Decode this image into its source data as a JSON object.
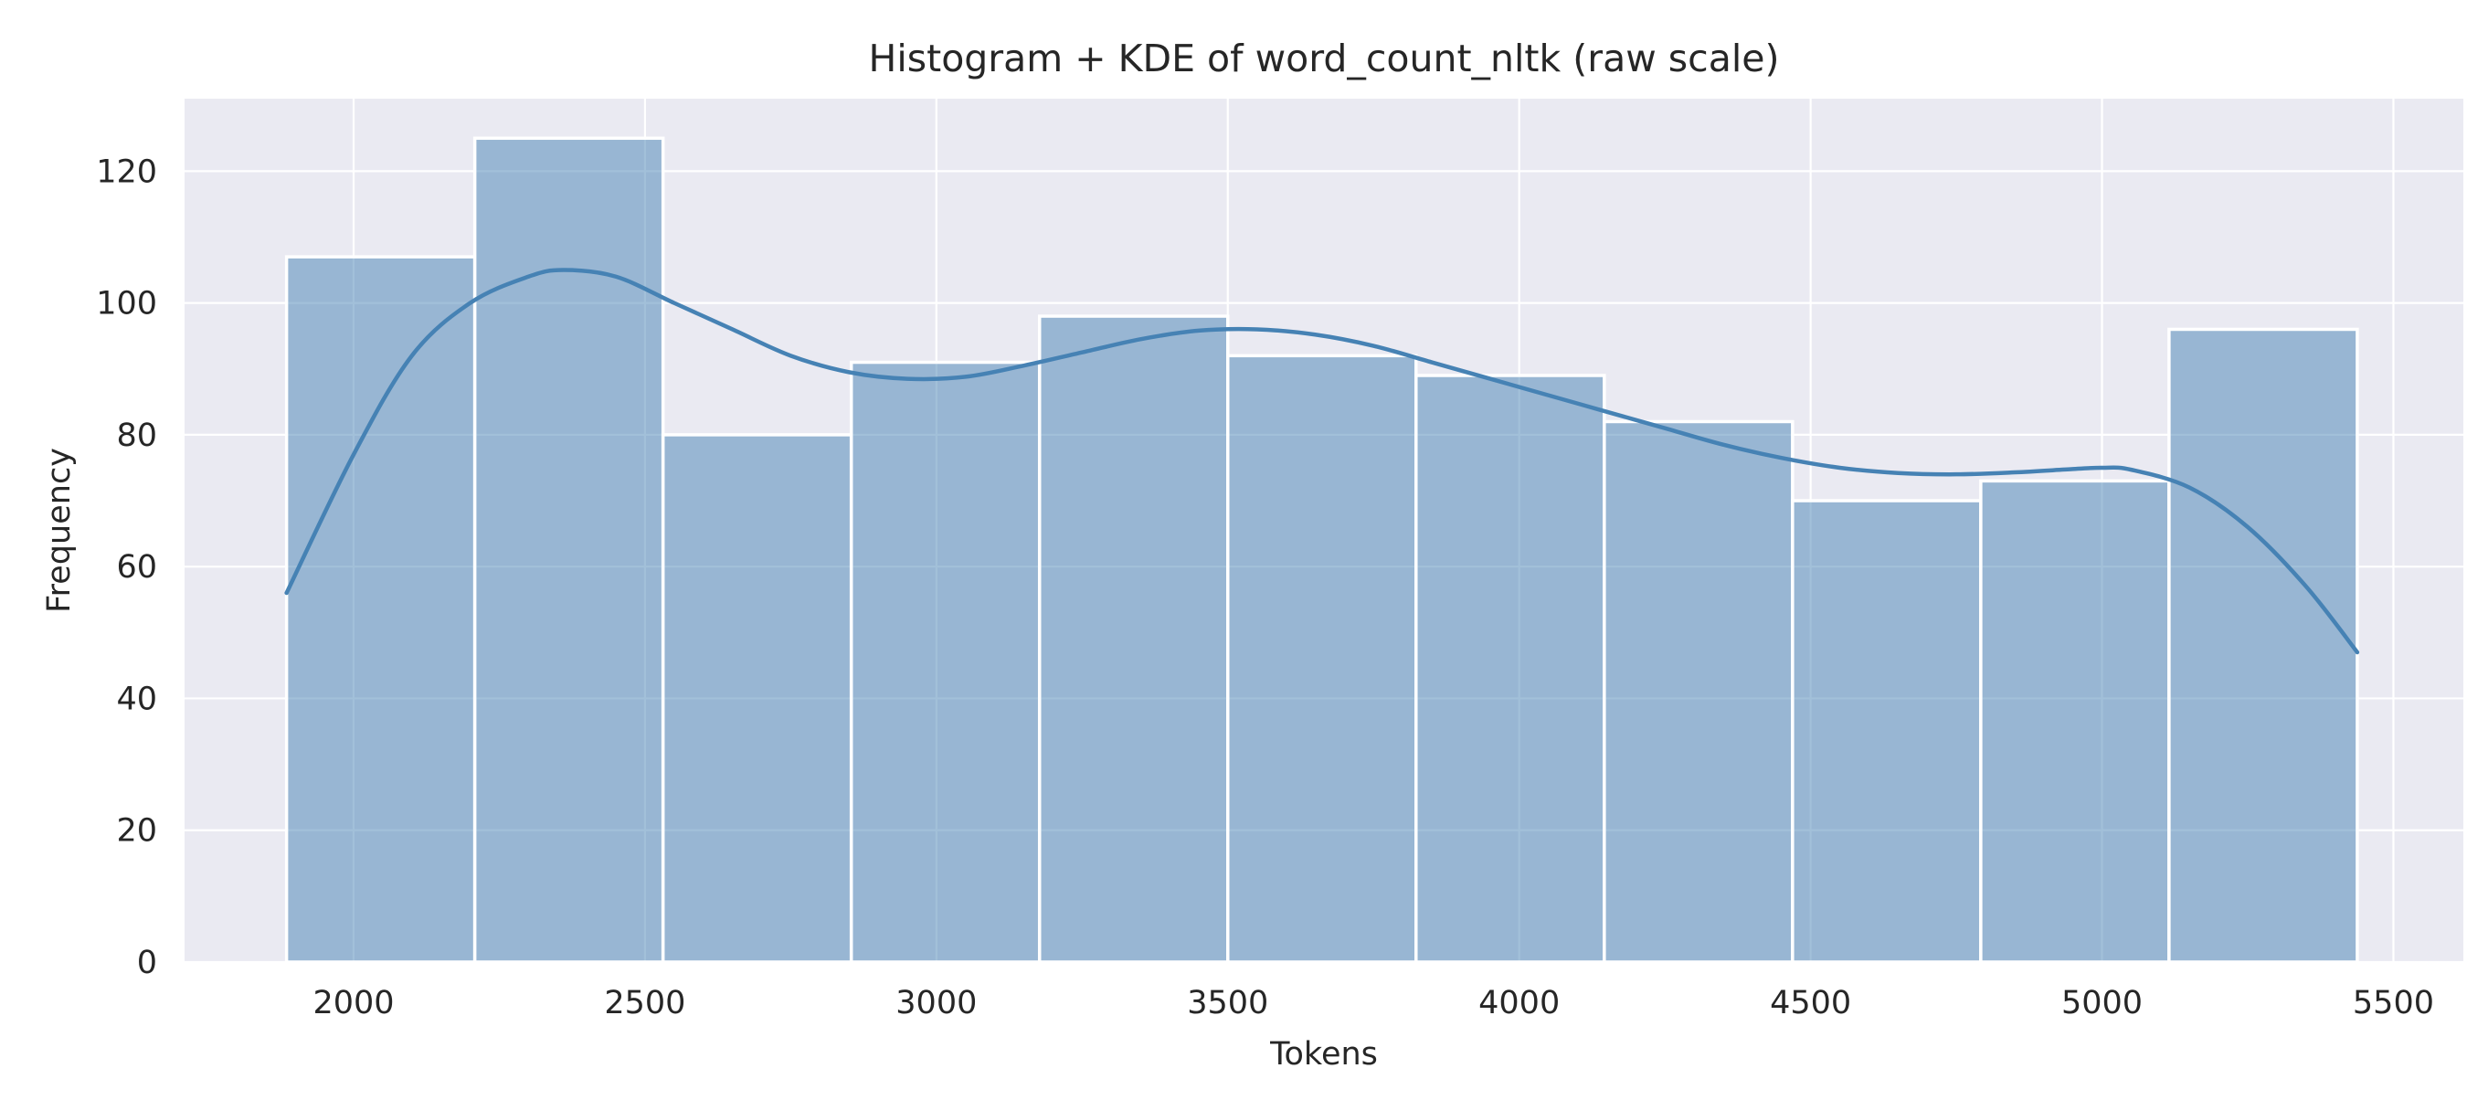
{
  "chart_data": {
    "type": "bar",
    "title": "Histogram + KDE of word_count_nltk (raw scale)",
    "xlabel": "Tokens",
    "ylabel": "Frequency",
    "xlim": [
      1710,
      5620
    ],
    "ylim": [
      0,
      131
    ],
    "xticks": [
      2000,
      2500,
      3000,
      3500,
      4000,
      4500,
      5000,
      5500
    ],
    "xtick_labels": [
      "2000",
      "2500",
      "3000",
      "3500",
      "4000",
      "4500",
      "5000",
      "5500"
    ],
    "yticks": [
      0,
      20,
      40,
      60,
      80,
      100,
      120
    ],
    "ytick_labels": [
      "0",
      "20",
      "40",
      "60",
      "80",
      "100",
      "120"
    ],
    "grid": true,
    "legend": "none",
    "bins": [
      {
        "x0": 1885,
        "x1": 2208,
        "count": 107
      },
      {
        "x0": 2208,
        "x1": 2531,
        "count": 125
      },
      {
        "x0": 2531,
        "x1": 2854,
        "count": 80
      },
      {
        "x0": 2854,
        "x1": 3177,
        "count": 91
      },
      {
        "x0": 3177,
        "x1": 3500,
        "count": 98
      },
      {
        "x0": 3500,
        "x1": 3823,
        "count": 92
      },
      {
        "x0": 3823,
        "x1": 4146,
        "count": 89
      },
      {
        "x0": 4146,
        "x1": 4469,
        "count": 82
      },
      {
        "x0": 4469,
        "x1": 4792,
        "count": 70
      },
      {
        "x0": 4792,
        "x1": 5115,
        "count": 73
      },
      {
        "x0": 5115,
        "x1": 5438,
        "count": 96
      }
    ],
    "kde": {
      "x": [
        1885,
        2000,
        2100,
        2200,
        2300,
        2360,
        2450,
        2550,
        2650,
        2750,
        2850,
        2950,
        3050,
        3150,
        3250,
        3350,
        3450,
        3550,
        3650,
        3750,
        3850,
        3950,
        4050,
        4150,
        4250,
        4350,
        4450,
        4550,
        4650,
        4750,
        4850,
        4950,
        5000,
        5050,
        5150,
        5250,
        5350,
        5438
      ],
      "y": [
        56,
        77,
        92,
        100,
        104,
        105,
        104,
        100,
        96,
        92,
        89.5,
        88.5,
        88.8,
        90.5,
        92.5,
        94.5,
        95.8,
        96,
        95.2,
        93.5,
        91,
        88.5,
        86,
        83.5,
        81,
        78.5,
        76.5,
        75,
        74.2,
        74,
        74.3,
        74.8,
        75,
        74.7,
        72,
        66,
        57,
        47
      ]
    },
    "colors": {
      "background": "#eaeaf2",
      "grid": "#ffffff",
      "bar_fill": "#4682b4",
      "bar_fill_opacity": 0.5,
      "bar_edge": "#ffffff",
      "kde_line": "#4682b4"
    }
  }
}
